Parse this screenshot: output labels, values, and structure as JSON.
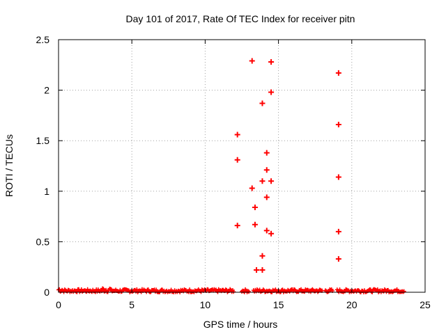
{
  "chart_data": {
    "type": "scatter",
    "title": "Day 101 of 2017, Rate Of TEC Index for receiver pitn",
    "xlabel": "GPS time / hours",
    "ylabel": "ROTI / TECUs",
    "xlim": [
      0,
      25
    ],
    "ylim": [
      0,
      2.5
    ],
    "xticks": [
      0,
      5,
      10,
      15,
      20,
      25
    ],
    "yticks": [
      0,
      0.5,
      1,
      1.5,
      2,
      2.5
    ],
    "xtick_labels": [
      "0",
      "5",
      "10",
      "15",
      "20",
      "25"
    ],
    "ytick_labels": [
      "0",
      "0.5",
      "1",
      "1.5",
      "2",
      "2.5"
    ],
    "grid": true,
    "marker": "plus",
    "color": "#ff0000",
    "baseline_band": {
      "segments": [
        [
          0,
          12.0
        ],
        [
          12.5,
          13.0
        ],
        [
          13.3,
          18.0
        ],
        [
          18.2,
          18.7
        ],
        [
          19.0,
          23.6
        ]
      ],
      "y_range": [
        0.0,
        0.05
      ]
    },
    "series": [
      {
        "name": "pitn",
        "points": [
          [
            12.2,
            1.56
          ],
          [
            12.2,
            1.31
          ],
          [
            12.2,
            0.66
          ],
          [
            13.2,
            2.29
          ],
          [
            13.2,
            1.03
          ],
          [
            13.4,
            0.84
          ],
          [
            13.4,
            0.67
          ],
          [
            13.5,
            0.22
          ],
          [
            13.9,
            1.87
          ],
          [
            13.9,
            1.1
          ],
          [
            13.9,
            0.36
          ],
          [
            13.9,
            0.22
          ],
          [
            14.2,
            1.38
          ],
          [
            14.2,
            1.21
          ],
          [
            14.2,
            0.94
          ],
          [
            14.2,
            0.61
          ],
          [
            14.5,
            2.28
          ],
          [
            14.5,
            1.98
          ],
          [
            14.5,
            1.1
          ],
          [
            14.5,
            0.58
          ],
          [
            19.1,
            2.17
          ],
          [
            19.1,
            1.66
          ],
          [
            19.1,
            1.14
          ],
          [
            19.1,
            0.6
          ],
          [
            19.1,
            0.33
          ]
        ]
      }
    ]
  }
}
